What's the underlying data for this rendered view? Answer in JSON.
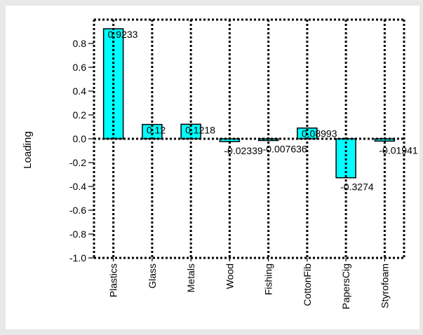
{
  "chart_data": {
    "type": "bar",
    "title": "",
    "xlabel": "",
    "ylabel": "Loading",
    "ylim": [
      -1.0,
      1.0
    ],
    "yticks": [
      "0.8",
      "0.6",
      "0.4",
      "0.2",
      "0.0",
      "-0.2",
      "-0.4",
      "-0.6",
      "-0.8",
      "-1.0"
    ],
    "categories": [
      "Plastics",
      "Glass",
      "Metals",
      "Wood",
      "Fishing",
      "CottonFib",
      "PapersCig",
      "Styrofoam"
    ],
    "values": [
      0.9233,
      0.12,
      0.1218,
      -0.02339,
      -0.007636,
      0.08993,
      -0.3274,
      -0.01941
    ],
    "value_labels": [
      "0.9233",
      "0.12",
      "0.1218",
      "-0.02339",
      "-0.007636",
      "0.08993",
      "-0.3274",
      "-0.01941"
    ],
    "bar_color": "#00ffff",
    "grid": "dotted vertical lines at each category, dotted zero line",
    "legend": "none"
  }
}
